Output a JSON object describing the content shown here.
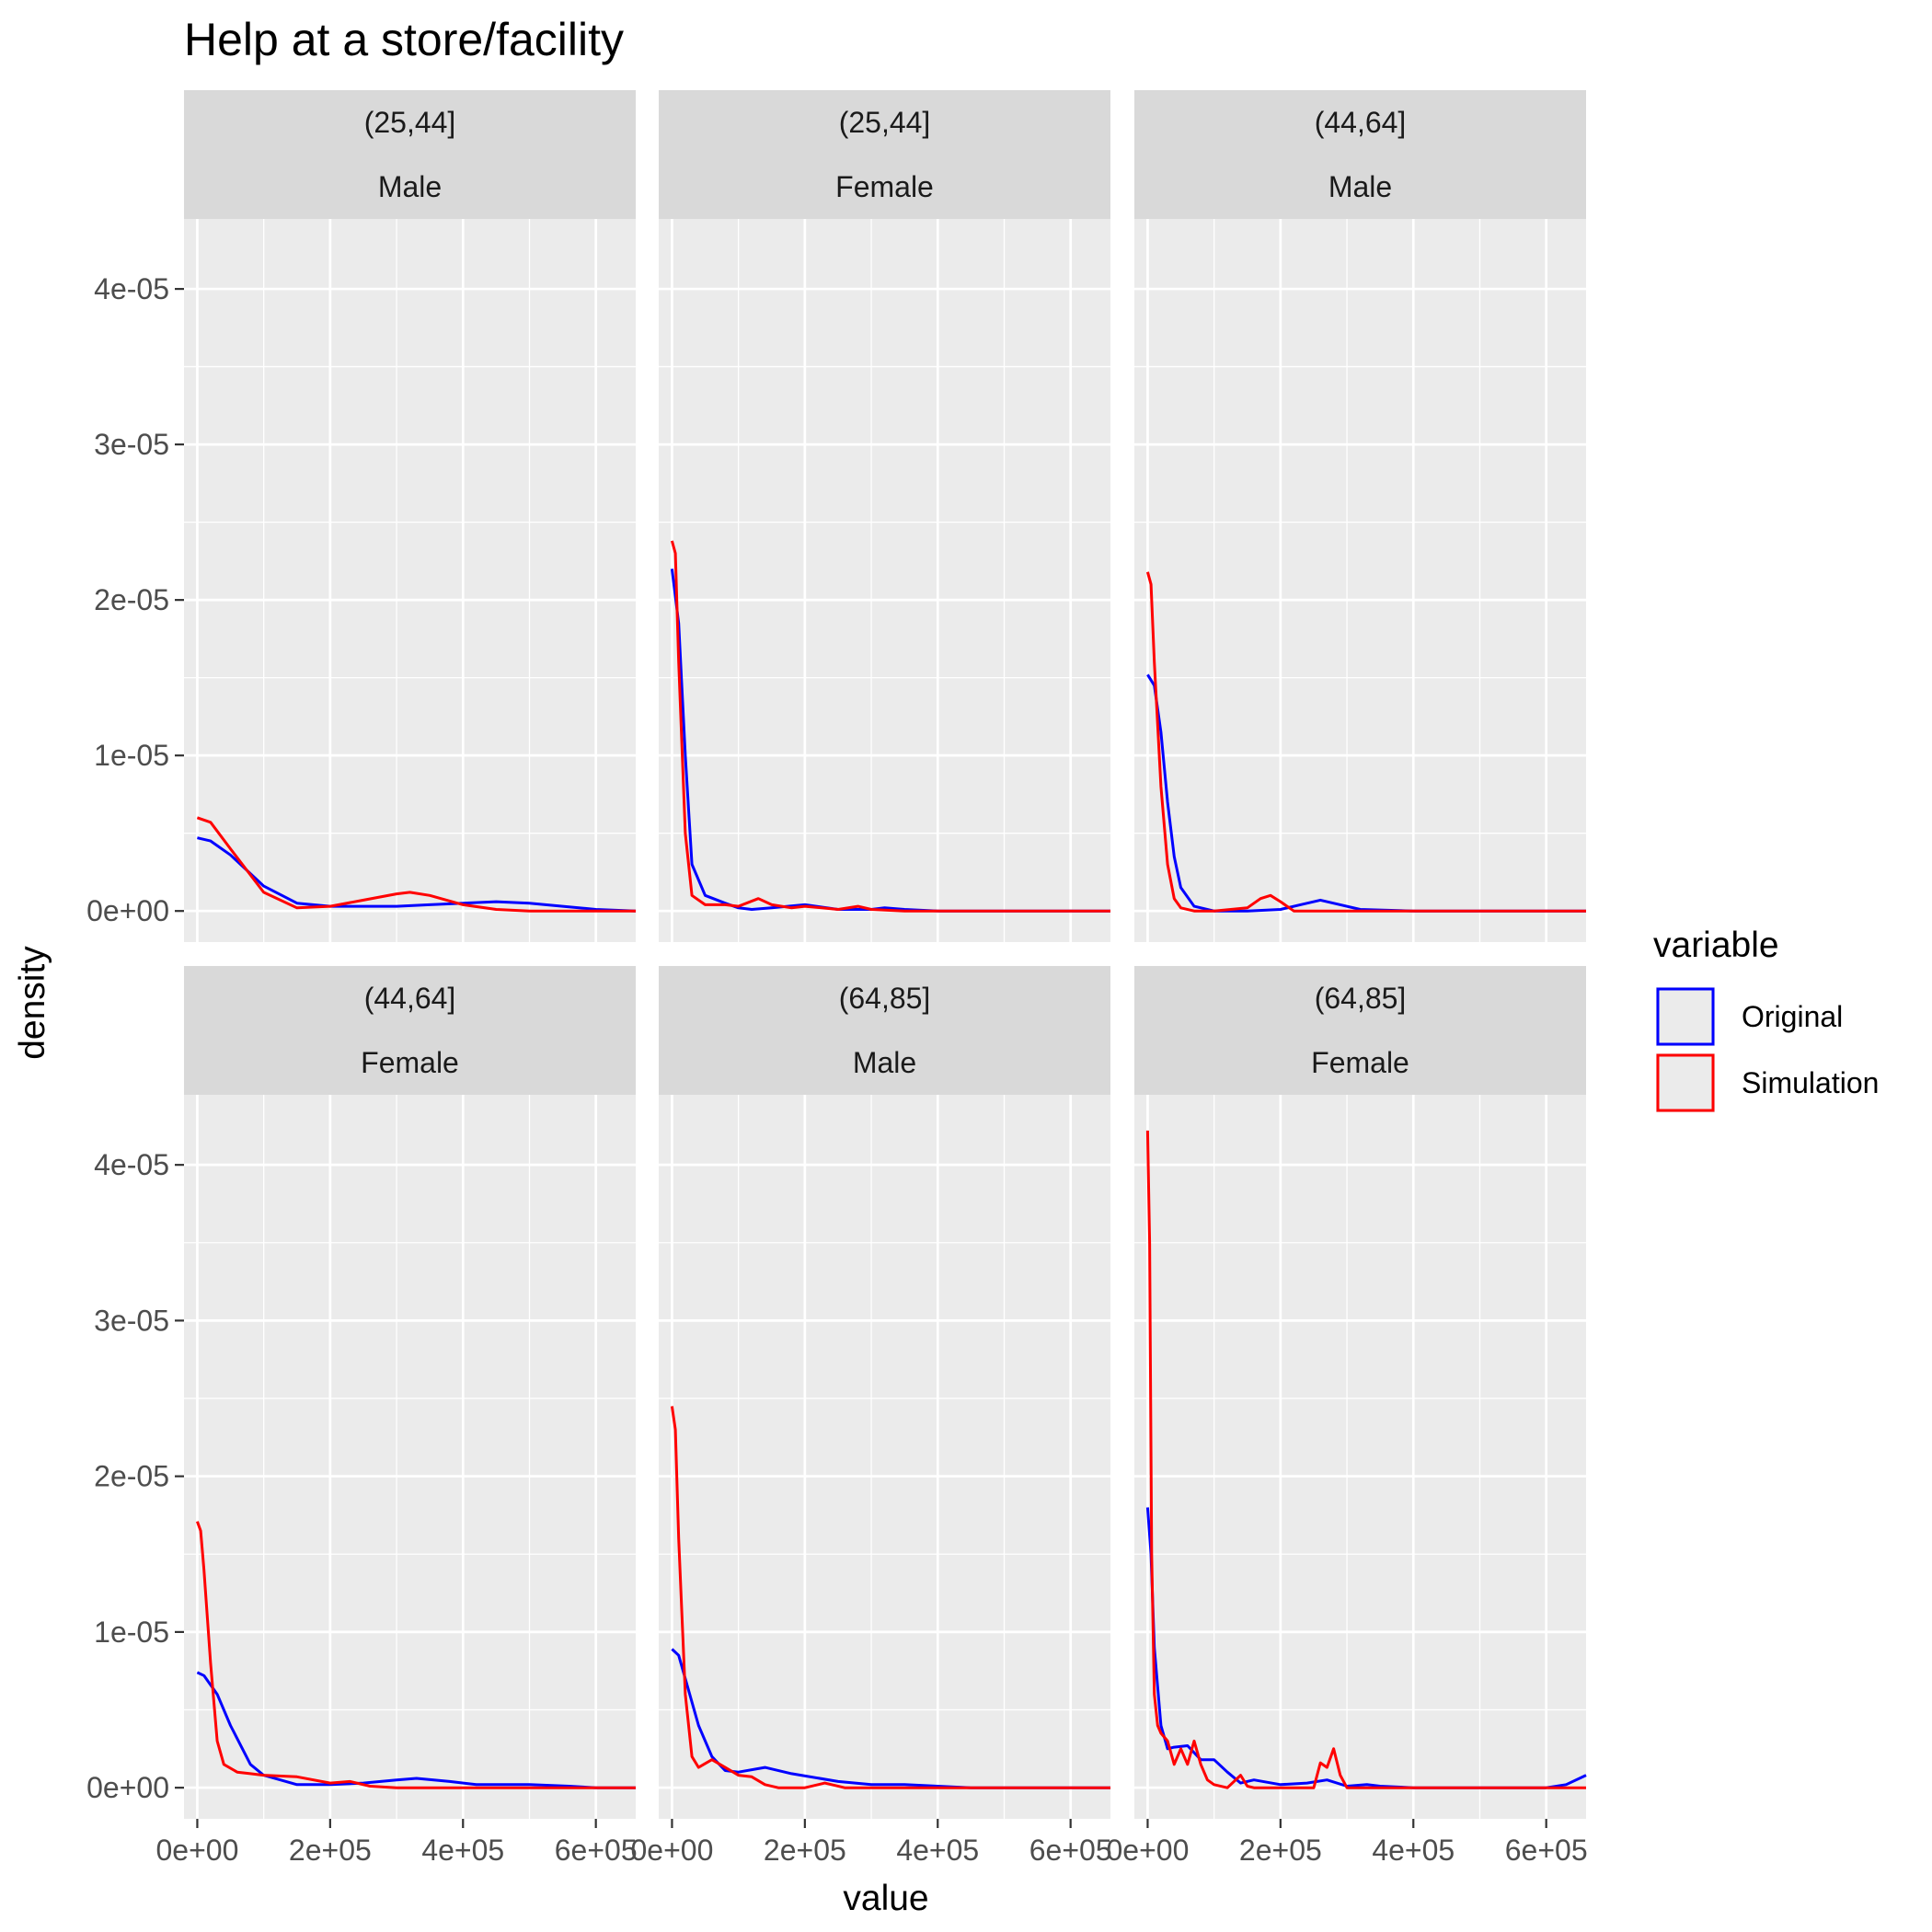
{
  "chart_data": {
    "type": "line",
    "title": "Help at a store/facility",
    "xlabel": "value",
    "ylabel": "density",
    "xlim": [
      -20000,
      660000
    ],
    "ylim": [
      -2e-06,
      4.45e-05
    ],
    "x_ticks": [
      0,
      200000,
      400000,
      600000
    ],
    "x_tick_labels": [
      "0e+00",
      "2e+05",
      "4e+05",
      "6e+05"
    ],
    "y_ticks": [
      0,
      1e-05,
      2e-05,
      3e-05,
      4e-05
    ],
    "y_tick_labels": [
      "0e+00",
      "1e-05",
      "2e-05",
      "3e-05",
      "4e-05"
    ],
    "grid": true,
    "legend": {
      "title": "variable",
      "placement": "right",
      "entries": [
        {
          "name": "Original",
          "color": "#0000FF"
        },
        {
          "name": "Simulation",
          "color": "#FF0000"
        }
      ]
    },
    "panels": [
      {
        "age": "(25,44]",
        "sex": "Male",
        "series": [
          {
            "name": "Original",
            "color": "#0000FF",
            "x": [
              0,
              20000,
              50000,
              100000,
              150000,
              200000,
              250000,
              300000,
              350000,
              400000,
              450000,
              500000,
              550000,
              600000,
              660000
            ],
            "y": [
              4.7e-06,
              4.5e-06,
              3.6e-06,
              1.6e-06,
              5e-07,
              3e-07,
              3e-07,
              3e-07,
              4e-07,
              5e-07,
              6e-07,
              5e-07,
              3e-07,
              1e-07,
              0
            ]
          },
          {
            "name": "Simulation",
            "color": "#FF0000",
            "x": [
              0,
              20000,
              50000,
              100000,
              150000,
              200000,
              250000,
              300000,
              320000,
              350000,
              400000,
              450000,
              500000,
              550000,
              600000,
              660000
            ],
            "y": [
              6e-06,
              5.7e-06,
              4e-06,
              1.2e-06,
              2e-07,
              3e-07,
              7e-07,
              1.1e-06,
              1.2e-06,
              1e-06,
              4e-07,
              1e-07,
              0,
              0,
              0,
              0
            ]
          }
        ]
      },
      {
        "age": "(25,44]",
        "sex": "Female",
        "series": [
          {
            "name": "Original",
            "color": "#0000FF",
            "x": [
              0,
              10000,
              20000,
              30000,
              50000,
              80000,
              100000,
              120000,
              150000,
              200000,
              250000,
              300000,
              320000,
              350000,
              400000,
              500000,
              660000
            ],
            "y": [
              2.2e-05,
              1.85e-05,
              1e-05,
              3e-06,
              1e-06,
              5e-07,
              2e-07,
              1e-07,
              2e-07,
              4e-07,
              1e-07,
              1e-07,
              2e-07,
              1e-07,
              0,
              0,
              0
            ]
          },
          {
            "name": "Simulation",
            "color": "#FF0000",
            "x": [
              0,
              5000,
              10000,
              20000,
              30000,
              50000,
              80000,
              100000,
              130000,
              150000,
              180000,
              200000,
              250000,
              280000,
              300000,
              350000,
              400000,
              500000,
              660000
            ],
            "y": [
              2.38e-05,
              2.3e-05,
              1.6e-05,
              5e-06,
              1e-06,
              4e-07,
              4e-07,
              3e-07,
              8e-07,
              4e-07,
              2e-07,
              3e-07,
              1e-07,
              3e-07,
              1e-07,
              0,
              0,
              0,
              0
            ]
          }
        ]
      },
      {
        "age": "(44,64]",
        "sex": "Male",
        "series": [
          {
            "name": "Original",
            "color": "#0000FF",
            "x": [
              0,
              10000,
              20000,
              30000,
              40000,
              50000,
              70000,
              100000,
              150000,
              200000,
              230000,
              260000,
              290000,
              320000,
              400000,
              500000,
              660000
            ],
            "y": [
              1.52e-05,
              1.45e-05,
              1.15e-05,
              7e-06,
              3.5e-06,
              1.5e-06,
              3e-07,
              0,
              0,
              1e-07,
              4e-07,
              7e-07,
              4e-07,
              1e-07,
              0,
              0,
              0
            ]
          },
          {
            "name": "Simulation",
            "color": "#FF0000",
            "x": [
              0,
              5000,
              10000,
              20000,
              30000,
              40000,
              50000,
              70000,
              100000,
              150000,
              170000,
              185000,
              200000,
              220000,
              260000,
              300000,
              400000,
              660000
            ],
            "y": [
              2.18e-05,
              2.1e-05,
              1.6e-05,
              8e-06,
              3e-06,
              8e-07,
              2e-07,
              0,
              0,
              2e-07,
              8e-07,
              1e-06,
              6e-07,
              0,
              0,
              0,
              0,
              0
            ]
          }
        ]
      },
      {
        "age": "(44,64]",
        "sex": "Female",
        "series": [
          {
            "name": "Original",
            "color": "#0000FF",
            "x": [
              0,
              10000,
              30000,
              50000,
              80000,
              100000,
              150000,
              200000,
              250000,
              300000,
              330000,
              380000,
              420000,
              500000,
              560000,
              600000,
              660000
            ],
            "y": [
              7.4e-06,
              7.2e-06,
              6e-06,
              4e-06,
              1.5e-06,
              8e-07,
              2e-07,
              2e-07,
              3e-07,
              5e-07,
              6e-07,
              4e-07,
              2e-07,
              2e-07,
              1e-07,
              0,
              0
            ]
          },
          {
            "name": "Simulation",
            "color": "#FF0000",
            "x": [
              0,
              5000,
              10000,
              20000,
              30000,
              40000,
              60000,
              80000,
              100000,
              150000,
              200000,
              230000,
              260000,
              300000,
              400000,
              660000
            ],
            "y": [
              1.71e-05,
              1.65e-05,
              1.4e-05,
              8e-06,
              3e-06,
              1.5e-06,
              1e-06,
              9e-07,
              8e-07,
              7e-07,
              3e-07,
              4e-07,
              1e-07,
              0,
              0,
              0
            ]
          }
        ]
      },
      {
        "age": "(64,85]",
        "sex": "Male",
        "series": [
          {
            "name": "Original",
            "color": "#0000FF",
            "x": [
              0,
              10000,
              20000,
              40000,
              60000,
              80000,
              100000,
              140000,
              180000,
              250000,
              300000,
              350000,
              400000,
              450000,
              500000,
              660000
            ],
            "y": [
              8.9e-06,
              8.5e-06,
              7e-06,
              4e-06,
              2e-06,
              1.1e-06,
              1e-06,
              1.3e-06,
              9e-07,
              4e-07,
              2e-07,
              2e-07,
              1e-07,
              0,
              0,
              0
            ]
          },
          {
            "name": "Simulation",
            "color": "#FF0000",
            "x": [
              0,
              5000,
              10000,
              20000,
              30000,
              40000,
              60000,
              80000,
              100000,
              120000,
              140000,
              160000,
              200000,
              230000,
              260000,
              300000,
              400000,
              660000
            ],
            "y": [
              2.45e-05,
              2.3e-05,
              1.6e-05,
              6e-06,
              2e-06,
              1.3e-06,
              1.8e-06,
              1.3e-06,
              8e-07,
              7e-07,
              2e-07,
              0,
              0,
              3e-07,
              0,
              0,
              0,
              0
            ]
          }
        ]
      },
      {
        "age": "(64,85]",
        "sex": "Female",
        "series": [
          {
            "name": "Original",
            "color": "#0000FF",
            "x": [
              0,
              5000,
              10000,
              20000,
              30000,
              40000,
              60000,
              80000,
              100000,
              120000,
              140000,
              160000,
              200000,
              240000,
              270000,
              300000,
              330000,
              350000,
              400000,
              500000,
              600000,
              630000,
              660000
            ],
            "y": [
              1.8e-05,
              1.5e-05,
              9e-06,
              4e-06,
              2.5e-06,
              2.6e-06,
              2.7e-06,
              1.8e-06,
              1.8e-06,
              1e-06,
              3e-07,
              5e-07,
              2e-07,
              3e-07,
              5e-07,
              1e-07,
              2e-07,
              1e-07,
              0,
              0,
              0,
              2e-07,
              8e-07
            ]
          },
          {
            "name": "Simulation",
            "color": "#FF0000",
            "x": [
              0,
              3000,
              6000,
              10000,
              15000,
              20000,
              30000,
              40000,
              50000,
              60000,
              70000,
              80000,
              90000,
              100000,
              120000,
              140000,
              150000,
              160000,
              200000,
              250000,
              260000,
              270000,
              280000,
              290000,
              300000,
              400000,
              660000
            ],
            "y": [
              4.22e-05,
              3.5e-05,
              1.5e-05,
              6e-06,
              4e-06,
              3.5e-06,
              3e-06,
              1.5e-06,
              2.5e-06,
              1.5e-06,
              3e-06,
              1.5e-06,
              5e-07,
              2e-07,
              0,
              8e-07,
              1e-07,
              0,
              0,
              0,
              1.6e-06,
              1.3e-06,
              2.5e-06,
              8e-07,
              0,
              0,
              0
            ]
          }
        ]
      }
    ]
  }
}
